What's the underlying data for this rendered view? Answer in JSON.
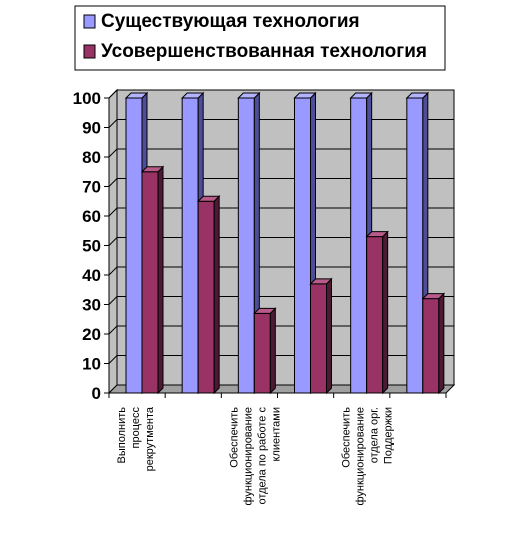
{
  "chart_data": {
    "type": "bar",
    "categories": [
      [
        "Выполнить",
        "процесс",
        "рекрутмента"
      ],
      [],
      [
        "Обеспечить",
        "функционирование",
        "отдела по работе с",
        "клиентами"
      ],
      [],
      [
        "Обеспечить",
        "функционирование",
        "отдела орг.",
        "Поддержки"
      ],
      []
    ],
    "series": [
      {
        "name": "Существующая технология",
        "values": [
          100,
          100,
          100,
          100,
          100,
          100
        ]
      },
      {
        "name": "Усовершенствованная технология",
        "values": [
          75,
          65,
          27,
          37,
          53,
          32
        ]
      }
    ],
    "ylim": [
      0,
      100
    ],
    "yticks": [
      0,
      10,
      20,
      30,
      40,
      50,
      60,
      70,
      80,
      90,
      100
    ],
    "grid": true,
    "legend_position": "top",
    "colors": {
      "series_1_front": "#9999ff",
      "series_1_side": "#4d4d99",
      "series_1_top": "#b3b3ff",
      "series_2_front": "#993366",
      "series_2_side": "#4d1a33",
      "series_2_top": "#b85a8a",
      "wall": "#c0c0c0",
      "floor": "#a0a0a0"
    }
  }
}
